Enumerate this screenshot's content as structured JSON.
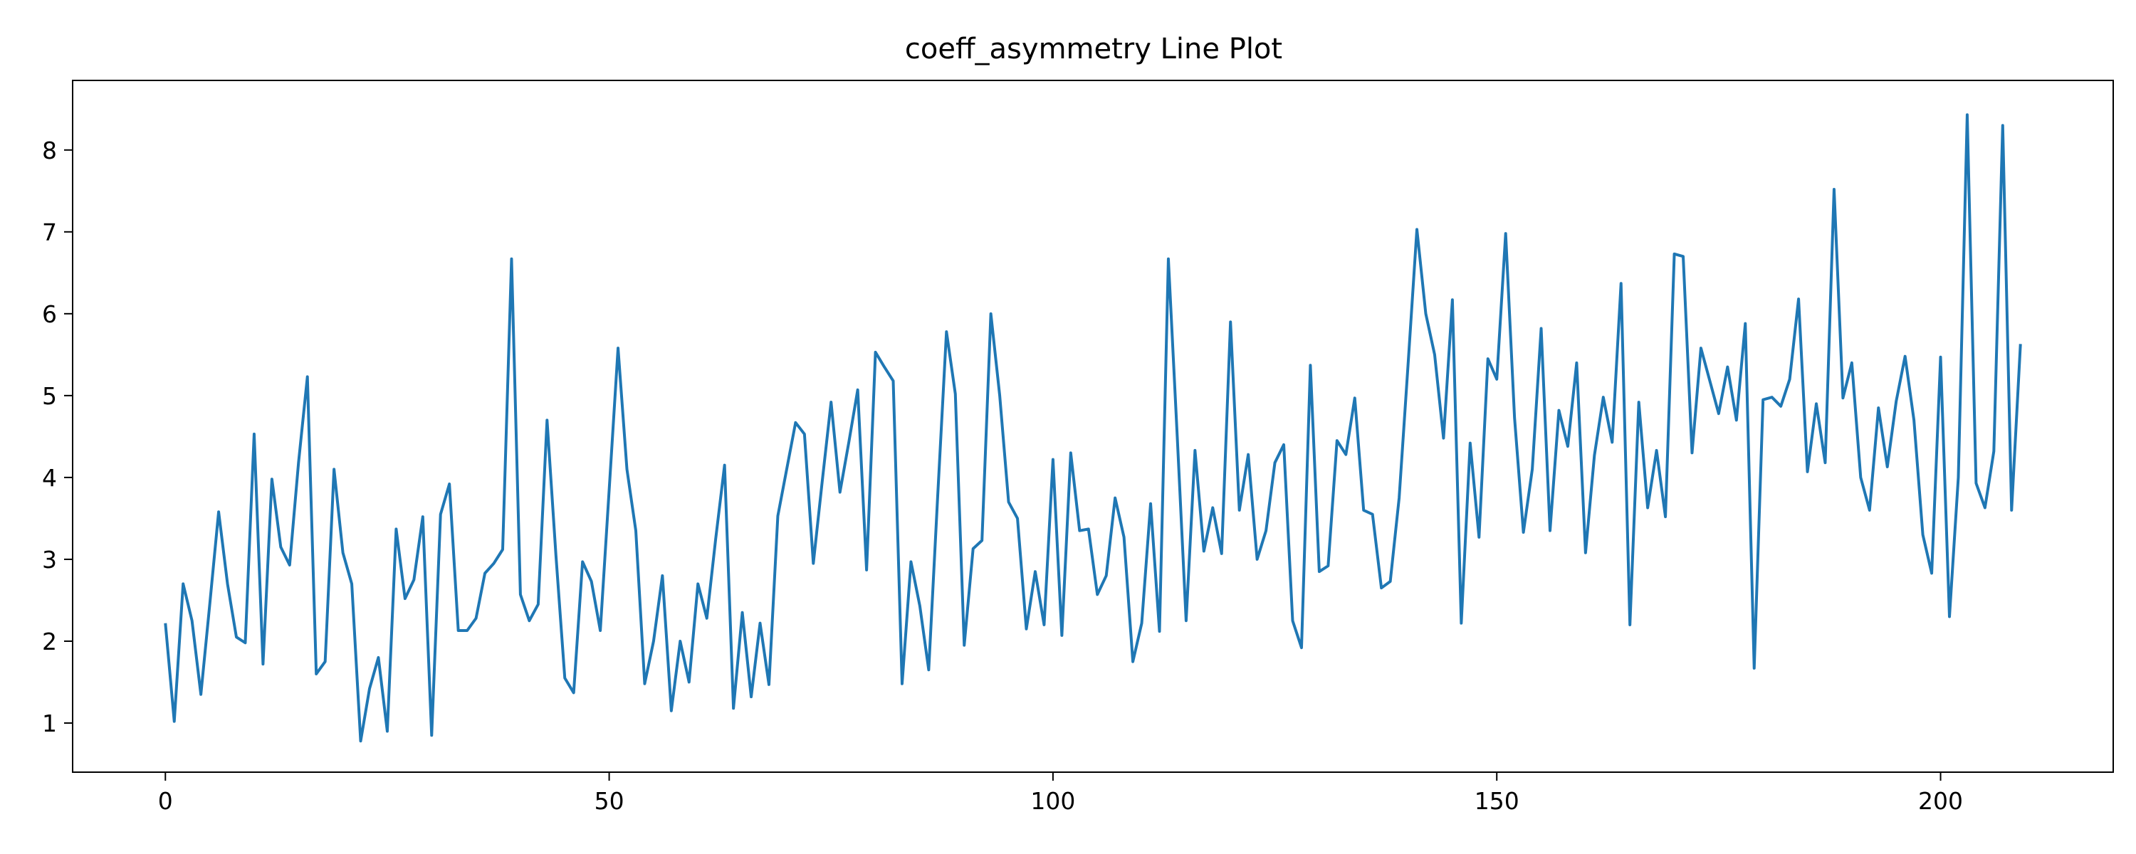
{
  "chart_data": {
    "type": "line",
    "title": "coeff_asymmetry Line Plot",
    "xlabel": "",
    "ylabel": "",
    "xlim": [
      -10.45,
      219.45
    ],
    "ylim": [
      0.4,
      8.85
    ],
    "xticks": [
      0,
      50,
      100,
      150,
      200
    ],
    "yticks": [
      1,
      2,
      3,
      4,
      5,
      6,
      7,
      8
    ],
    "grid": false,
    "legend": "none",
    "line_color": "#1f77b4",
    "series": [
      {
        "x_start": 0,
        "x_step": 1,
        "values": [
          2.22,
          1.02,
          2.7,
          2.25,
          1.35,
          2.45,
          3.58,
          2.7,
          2.05,
          1.98,
          4.53,
          1.72,
          3.98,
          3.15,
          2.93,
          4.18,
          5.23,
          1.6,
          1.75,
          4.1,
          3.08,
          2.7,
          0.78,
          1.42,
          1.8,
          0.9,
          3.37,
          2.52,
          2.75,
          3.52,
          0.85,
          3.55,
          3.92,
          2.13,
          2.13,
          2.28,
          2.83,
          2.95,
          3.12,
          6.67,
          2.57,
          2.25,
          2.45,
          4.7,
          3.05,
          1.55,
          1.37,
          2.97,
          2.73,
          2.13,
          3.85,
          5.58,
          4.1,
          3.35,
          1.48,
          2.0,
          2.8,
          1.15,
          2.0,
          1.5,
          2.7,
          2.28,
          3.25,
          4.15,
          1.18,
          2.35,
          1.32,
          2.22,
          1.47,
          3.53,
          4.1,
          4.67,
          4.53,
          2.95,
          3.95,
          4.92,
          3.82,
          4.43,
          5.07,
          2.87,
          5.53,
          5.35,
          5.18,
          1.48,
          2.97,
          2.43,
          1.65,
          3.75,
          5.78,
          5.02,
          1.95,
          3.13,
          3.23,
          6.0,
          5.0,
          3.7,
          3.5,
          2.15,
          2.85,
          2.2,
          4.22,
          2.07,
          4.3,
          3.35,
          3.37,
          2.57,
          2.8,
          3.75,
          3.27,
          1.75,
          2.22,
          3.68,
          2.12,
          6.67,
          4.5,
          2.25,
          4.33,
          3.1,
          3.63,
          3.07,
          5.9,
          3.6,
          4.28,
          3.0,
          3.35,
          4.18,
          4.4,
          2.25,
          1.92,
          5.37,
          2.85,
          2.92,
          4.45,
          4.28,
          4.97,
          3.6,
          3.55,
          2.65,
          2.73,
          3.75,
          5.37,
          7.03,
          6.0,
          5.5,
          4.48,
          6.17,
          2.22,
          4.42,
          3.27,
          5.45,
          5.2,
          6.98,
          4.73,
          3.33,
          4.1,
          5.82,
          3.35,
          4.82,
          4.38,
          5.4,
          3.08,
          4.27,
          4.98,
          4.43,
          6.37,
          2.2,
          4.92,
          3.63,
          4.33,
          3.52,
          6.73,
          6.7,
          4.3,
          5.58,
          5.18,
          4.78,
          5.35,
          4.7,
          5.88,
          1.67,
          4.95,
          4.98,
          4.87,
          5.2,
          6.18,
          4.07,
          4.9,
          4.18,
          7.52,
          4.97,
          5.4,
          4.0,
          3.6,
          4.85,
          4.13,
          4.93,
          5.48,
          4.7,
          3.3,
          2.83,
          5.47,
          2.3,
          4.0,
          8.43,
          3.93,
          3.63,
          4.32,
          8.3,
          3.6,
          5.63
        ]
      }
    ]
  }
}
